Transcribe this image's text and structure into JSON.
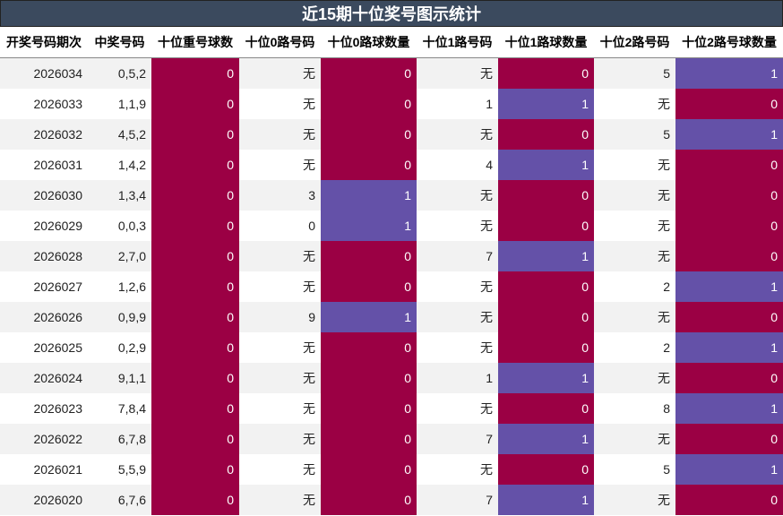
{
  "title": "近15期十位奖号图示统计",
  "headers": [
    "开奖号码期次",
    "中奖号码",
    "十位重号球数",
    "十位0路号码",
    "十位0路球数量",
    "十位1路号码",
    "十位1路球数量",
    "十位2路号码",
    "十位2路号球数量"
  ],
  "colors": {
    "zero": "#9b0044",
    "one": "#6451a8",
    "title_bg": "#3b4a5e"
  },
  "rows": [
    [
      "2026034",
      "0,5,2",
      "0",
      "无",
      "0",
      "无",
      "0",
      "5",
      "1"
    ],
    [
      "2026033",
      "1,1,9",
      "0",
      "无",
      "0",
      "1",
      "1",
      "无",
      "0"
    ],
    [
      "2026032",
      "4,5,2",
      "0",
      "无",
      "0",
      "无",
      "0",
      "5",
      "1"
    ],
    [
      "2026031",
      "1,4,2",
      "0",
      "无",
      "0",
      "4",
      "1",
      "无",
      "0"
    ],
    [
      "2026030",
      "1,3,4",
      "0",
      "3",
      "1",
      "无",
      "0",
      "无",
      "0"
    ],
    [
      "2026029",
      "0,0,3",
      "0",
      "0",
      "1",
      "无",
      "0",
      "无",
      "0"
    ],
    [
      "2026028",
      "2,7,0",
      "0",
      "无",
      "0",
      "7",
      "1",
      "无",
      "0"
    ],
    [
      "2026027",
      "1,2,6",
      "0",
      "无",
      "0",
      "无",
      "0",
      "2",
      "1"
    ],
    [
      "2026026",
      "0,9,9",
      "0",
      "9",
      "1",
      "无",
      "0",
      "无",
      "0"
    ],
    [
      "2026025",
      "0,2,9",
      "0",
      "无",
      "0",
      "无",
      "0",
      "2",
      "1"
    ],
    [
      "2026024",
      "9,1,1",
      "0",
      "无",
      "0",
      "1",
      "1",
      "无",
      "0"
    ],
    [
      "2026023",
      "7,8,4",
      "0",
      "无",
      "0",
      "无",
      "0",
      "8",
      "1"
    ],
    [
      "2026022",
      "6,7,8",
      "0",
      "无",
      "0",
      "7",
      "1",
      "无",
      "0"
    ],
    [
      "2026021",
      "5,5,9",
      "0",
      "无",
      "0",
      "无",
      "0",
      "5",
      "1"
    ],
    [
      "2026020",
      "6,7,6",
      "0",
      "无",
      "0",
      "7",
      "1",
      "无",
      "0"
    ]
  ]
}
